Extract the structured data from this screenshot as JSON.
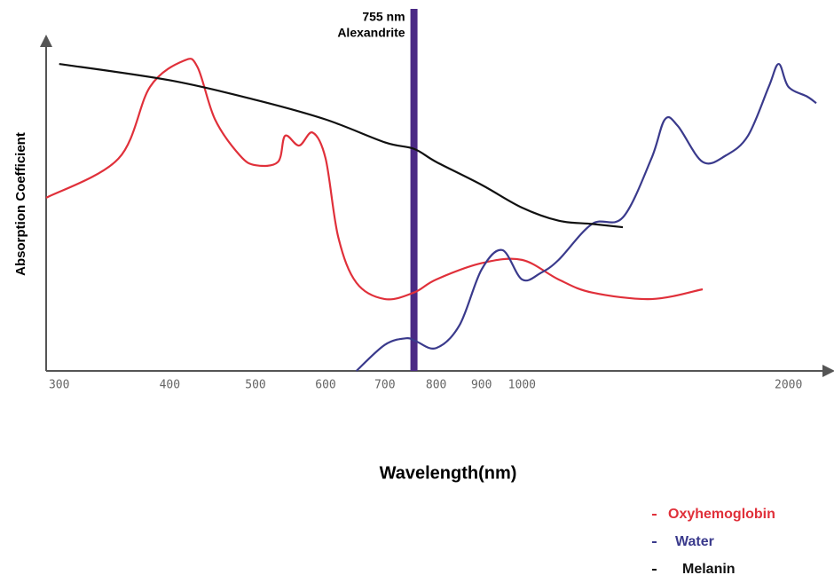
{
  "chart_data": {
    "type": "line",
    "xlabel": "Wavelength(nm)",
    "ylabel": "Absorption Coefficient",
    "xscale": "log",
    "xlim": [
      290,
      2150
    ],
    "ylim": [
      0,
      100
    ],
    "xticks": [
      300,
      400,
      500,
      600,
      700,
      800,
      900,
      1000,
      2000
    ],
    "legend": "bottom-right",
    "annotation": {
      "x": 755,
      "color": "#4b2a85",
      "lines": [
        "755 nm",
        "Alexandrite"
      ]
    },
    "series": [
      {
        "name": "Oxyhemoglobin",
        "color": "#e0303a",
        "x": [
          290,
          350,
          380,
          415,
          430,
          450,
          480,
          500,
          530,
          540,
          560,
          580,
          600,
          620,
          650,
          700,
          755,
          800,
          900,
          1000,
          1100,
          1200,
          1400,
          1600
        ],
        "values": [
          53,
          65,
          87,
          95,
          93,
          77,
          66,
          63,
          64,
          72,
          69,
          73,
          65,
          41,
          27,
          22,
          24,
          28,
          33,
          34,
          28,
          24,
          22,
          25
        ]
      },
      {
        "name": "Water",
        "color": "#3a3a8c",
        "x": [
          650,
          700,
          740,
          760,
          800,
          850,
          900,
          950,
          1000,
          1050,
          1100,
          1200,
          1300,
          1400,
          1450,
          1500,
          1600,
          1700,
          1800,
          1900,
          1950,
          2000,
          2100,
          2150
        ],
        "values": [
          0,
          8,
          10,
          9,
          7,
          14,
          31,
          37,
          28,
          30,
          34,
          45,
          47,
          65,
          77,
          75,
          64,
          66,
          72,
          87,
          94,
          87,
          84,
          82
        ]
      },
      {
        "name": "Melanin",
        "color": "#111111",
        "x": [
          300,
          400,
          500,
          600,
          700,
          755,
          800,
          900,
          1000,
          1100,
          1200,
          1300
        ],
        "values": [
          94,
          89,
          83,
          77,
          70,
          68,
          64,
          57,
          50,
          46,
          45,
          44
        ]
      }
    ]
  }
}
